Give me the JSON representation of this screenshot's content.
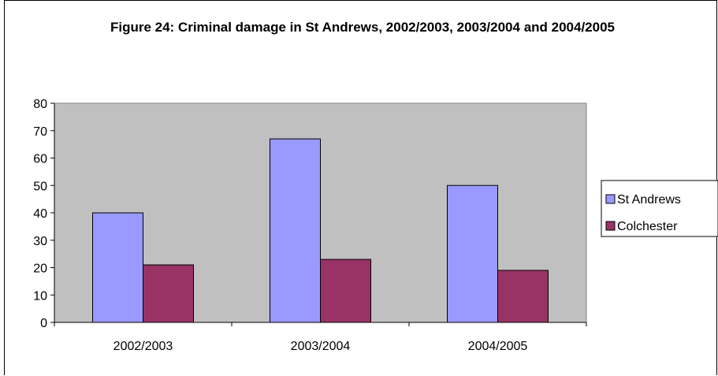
{
  "chart_data": {
    "type": "bar",
    "title": "Figure 24:  Criminal damage in St Andrews, 2002/2003, 2003/2004 and 2004/2005",
    "categories": [
      "2002/2003",
      "2003/2004",
      "2004/2005"
    ],
    "series": [
      {
        "name": "St Andrews",
        "values": [
          40,
          67,
          50
        ],
        "color": "#9999ff"
      },
      {
        "name": "Colchester",
        "values": [
          21,
          23,
          19
        ],
        "color": "#993366"
      }
    ],
    "ylim": [
      0,
      80
    ],
    "yticks": [
      "0",
      "10",
      "20",
      "30",
      "40",
      "50",
      "60",
      "70",
      "80"
    ],
    "plot_background": "#c0c0c0",
    "gridlines": false,
    "legend_position": "right"
  }
}
